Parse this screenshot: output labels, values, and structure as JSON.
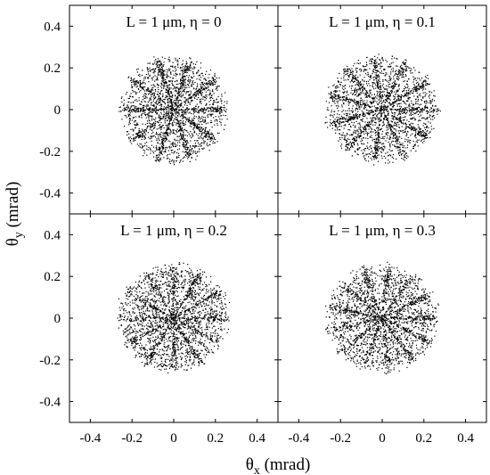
{
  "chart_data": {
    "type": "scatter",
    "layout": "2x2 grid of panels with shared axes",
    "xlabel": "θx (mrad)",
    "ylabel": "θy (mrad)",
    "xlim": [
      -0.5,
      0.5
    ],
    "ylim": [
      -0.5,
      0.5
    ],
    "x_ticks": [
      -0.4,
      -0.2,
      0,
      0.2,
      0.4
    ],
    "y_ticks": [
      -0.4,
      -0.2,
      0,
      0.2,
      0.4
    ],
    "x_tick_labels": [
      "-0.4",
      "-0.2",
      "0",
      "0.2",
      "0.4"
    ],
    "y_tick_labels": [
      "-0.4",
      "-0.2",
      "0",
      "0.2",
      "0.4"
    ],
    "grid": false,
    "point_color": "#000000",
    "panels": [
      {
        "title": "L = 1 μm, η = 0",
        "points_center": [
          0,
          0
        ],
        "approx_radius": 0.25
      },
      {
        "title": "L = 1 μm, η = 0.1",
        "points_center": [
          0,
          0
        ],
        "approx_radius": 0.25
      },
      {
        "title": "L = 1 μm, η = 0.2",
        "points_center": [
          0,
          0
        ],
        "approx_radius": 0.26
      },
      {
        "title": "L = 1 μm, η = 0.3",
        "points_center": [
          0,
          0
        ],
        "approx_radius": 0.25
      }
    ]
  }
}
